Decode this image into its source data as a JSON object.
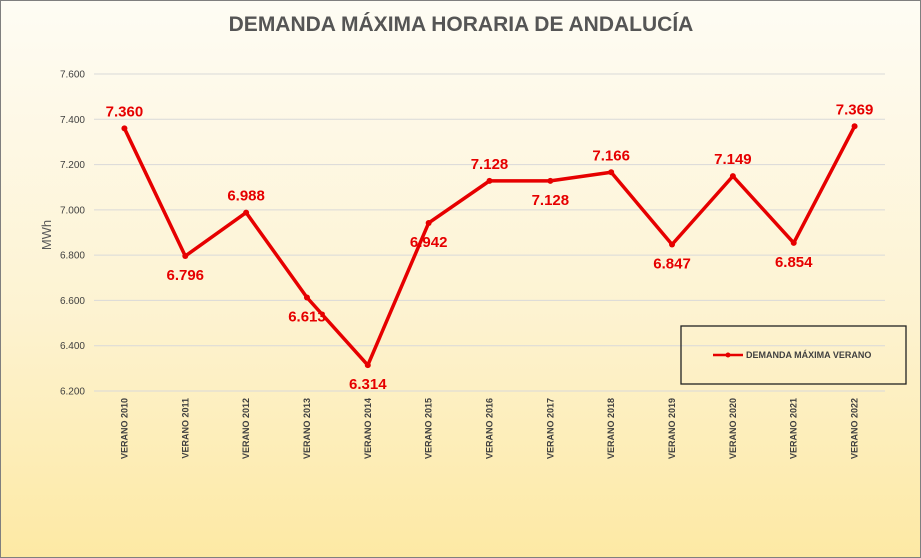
{
  "chart_data": {
    "type": "line",
    "title": "DEMANDA MÁXIMA HORARIA DE ANDALUCÍA",
    "xlabel": "",
    "ylabel": "MWh",
    "categories": [
      "VERANO 2010",
      "VERANO 2011",
      "VERANO 2012",
      "VERANO 2013",
      "VERANO 2014",
      "VERANO 2015",
      "VERANO 2016",
      "VERANO 2017",
      "VERANO 2018",
      "VERANO 2019",
      "VERANO 2020",
      "VERANO 2021",
      "VERANO 2022"
    ],
    "series": [
      {
        "name": "DEMANDA MÁXIMA VERANO",
        "values": [
          7360,
          6796,
          6988,
          6613,
          6314,
          6942,
          7128,
          7128,
          7166,
          6847,
          7149,
          6854,
          7369
        ],
        "labels": [
          "7.360",
          "6.796",
          "6.988",
          "6.613",
          "6.314",
          "6.942",
          "7.128",
          "7.128",
          "7.166",
          "6.847",
          "7.149",
          "6.854",
          "7.369"
        ],
        "color": "#e60000"
      }
    ],
    "ylim": [
      6200,
      7600
    ],
    "yticks": [
      6200,
      6400,
      6600,
      6800,
      7000,
      7200,
      7400,
      7600
    ],
    "ytick_labels": [
      "6.200",
      "6.400",
      "6.600",
      "6.800",
      "7.000",
      "7.200",
      "7.400",
      "7.600"
    ],
    "grid": true,
    "legend_position": "bottom-right"
  }
}
